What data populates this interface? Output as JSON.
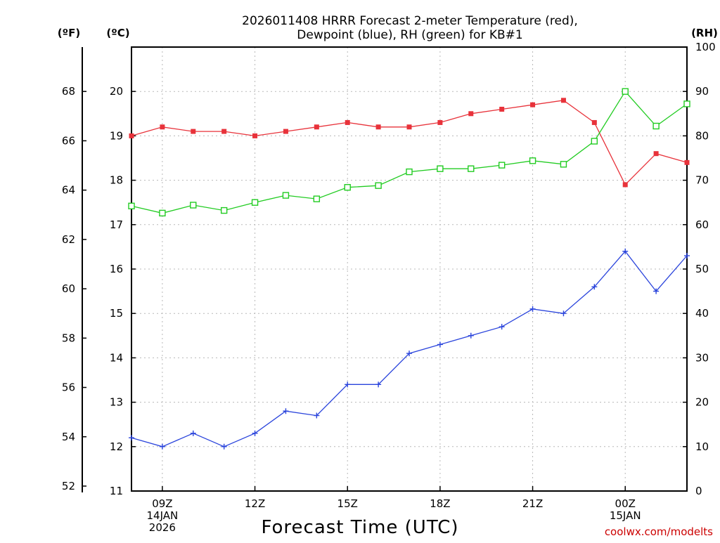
{
  "chart_data": {
    "type": "line",
    "title_lines": [
      "2026011408 HRRR Forecast 2-meter Temperature (red),",
      "Dewpoint (blue), RH (green) for KB#1"
    ],
    "units": {
      "fahrenheit": "(ºF)",
      "celsius": "(ºC)",
      "rh": "(RH)"
    },
    "xlabel": "Forecast Time (UTC)",
    "credit": "coolwx.com/modelts",
    "x_hours": [
      0,
      1,
      2,
      3,
      4,
      5,
      6,
      7,
      8,
      9,
      10,
      11,
      12,
      13,
      14,
      15,
      16,
      17,
      18
    ],
    "x_ticks": [
      {
        "hour": 1,
        "lines": [
          "09Z",
          "14JAN",
          "2026"
        ]
      },
      {
        "hour": 4,
        "lines": [
          "12Z"
        ]
      },
      {
        "hour": 7,
        "lines": [
          "15Z"
        ]
      },
      {
        "hour": 10,
        "lines": [
          "18Z"
        ]
      },
      {
        "hour": 13,
        "lines": [
          "21Z"
        ]
      },
      {
        "hour": 16,
        "lines": [
          "00Z",
          "15JAN"
        ]
      }
    ],
    "celsius_axis": {
      "range": [
        11,
        21
      ],
      "ticks": [
        "11",
        "12",
        "13",
        "14",
        "15",
        "16",
        "17",
        "18",
        "19",
        "20"
      ]
    },
    "fahrenheit_axis": {
      "range": [
        51.8,
        69.8
      ],
      "ticks": [
        "52",
        "54",
        "56",
        "58",
        "60",
        "62",
        "64",
        "66",
        "68"
      ]
    },
    "rh_axis": {
      "range": [
        0,
        100
      ],
      "ticks": [
        "0",
        "10",
        "20",
        "30",
        "40",
        "50",
        "60",
        "70",
        "80",
        "90",
        "100"
      ]
    },
    "grid": true,
    "series": [
      {
        "name": "Temperature",
        "axis": "celsius",
        "color": "#e8323a",
        "marker": "filled-square",
        "values": [
          19.0,
          19.2,
          19.1,
          19.1,
          19.0,
          19.1,
          19.2,
          19.3,
          19.2,
          19.2,
          19.3,
          19.5,
          19.6,
          19.7,
          19.8,
          19.3,
          17.9,
          18.6,
          18.4
        ]
      },
      {
        "name": "Dewpoint",
        "axis": "celsius",
        "color": "#2a44dc",
        "marker": "plus",
        "values": [
          12.2,
          12.0,
          12.3,
          12.0,
          12.3,
          12.8,
          12.7,
          13.4,
          13.4,
          14.1,
          14.3,
          14.5,
          14.7,
          15.1,
          15.0,
          15.6,
          16.4,
          15.5,
          16.3
        ]
      },
      {
        "name": "RH",
        "axis": "rh",
        "color": "#22cc22",
        "marker": "open-square",
        "values": [
          64.2,
          62.6,
          64.4,
          63.2,
          65.0,
          66.6,
          65.8,
          68.4,
          68.8,
          71.9,
          72.6,
          72.6,
          73.4,
          74.4,
          73.6,
          78.8,
          90.0,
          82.2,
          87.2
        ]
      }
    ]
  }
}
